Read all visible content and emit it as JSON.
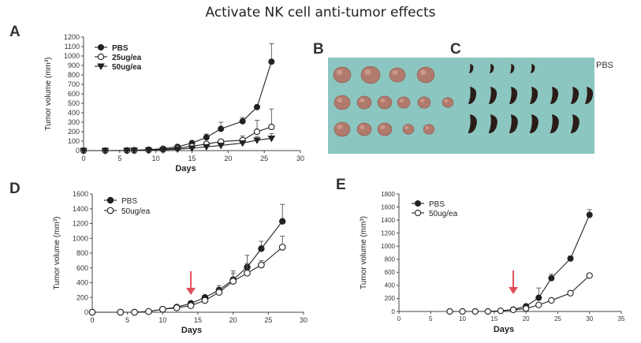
{
  "title": "Activate NK cell anti-tumor effects",
  "panels": {
    "a": {
      "letter": "A"
    },
    "b": {
      "letter": "B"
    },
    "c": {
      "letter": "C",
      "label": "PBS"
    },
    "d": {
      "letter": "D"
    },
    "e": {
      "letter": "E"
    }
  },
  "colors": {
    "axis": "#444444",
    "series_fill": "#222222",
    "arrow": "#e0505a",
    "photo_bg": "#8cc6c0",
    "tumor": "#b07a6c",
    "spleen": "#2a1c18"
  },
  "chart_data": [
    {
      "id": "a",
      "type": "line",
      "xlabel": "Days",
      "ylabel": "Tumor volume (mm³)",
      "xlim": [
        0,
        30
      ],
      "ylim": [
        0,
        1200
      ],
      "xticks": [
        0,
        5,
        10,
        15,
        20,
        25,
        30
      ],
      "yticks": [
        0,
        100,
        200,
        300,
        400,
        500,
        600,
        700,
        800,
        900,
        1000,
        1100,
        1200
      ],
      "legend_position": "top-left",
      "series": [
        {
          "name": "PBS",
          "marker": "circle-filled",
          "x": [
            0,
            3,
            6,
            7,
            9,
            11,
            13,
            15,
            17,
            19,
            22,
            24,
            26
          ],
          "y": [
            0,
            0,
            2,
            5,
            10,
            20,
            40,
            80,
            140,
            230,
            310,
            460,
            940
          ],
          "err": [
            0,
            0,
            0,
            0,
            3,
            6,
            10,
            20,
            35,
            70,
            40,
            0,
            190
          ]
        },
        {
          "name": "25ug/ea",
          "marker": "circle-open",
          "x": [
            0,
            3,
            6,
            7,
            9,
            11,
            13,
            15,
            17,
            19,
            22,
            24,
            26
          ],
          "y": [
            0,
            0,
            1,
            2,
            6,
            12,
            25,
            45,
            70,
            95,
            110,
            200,
            250
          ],
          "err": [
            0,
            0,
            0,
            0,
            0,
            3,
            6,
            10,
            15,
            20,
            45,
            120,
            190
          ]
        },
        {
          "name": "50ug/ea",
          "marker": "triangle-down-filled",
          "x": [
            0,
            3,
            6,
            7,
            9,
            11,
            13,
            15,
            17,
            19,
            22,
            24,
            26
          ],
          "y": [
            0,
            0,
            1,
            2,
            4,
            8,
            15,
            25,
            40,
            55,
            80,
            110,
            130
          ],
          "err": [
            0,
            0,
            0,
            0,
            0,
            0,
            4,
            8,
            10,
            15,
            20,
            40,
            50
          ]
        }
      ]
    },
    {
      "id": "d",
      "type": "line",
      "xlabel": "Days",
      "ylabel": "Tumor volume (mm³)",
      "xlim": [
        0,
        30
      ],
      "ylim": [
        0,
        1600
      ],
      "xticks": [
        0,
        5,
        10,
        15,
        20,
        25,
        30
      ],
      "yticks": [
        0,
        200,
        400,
        600,
        800,
        1000,
        1200,
        1400,
        1600
      ],
      "legend_position": "top-left",
      "arrow_at_x": 14,
      "series": [
        {
          "name": "PBS",
          "marker": "circle-filled",
          "x": [
            0,
            4,
            6,
            8,
            10,
            12,
            14,
            16,
            18,
            20,
            22,
            24,
            27
          ],
          "y": [
            0,
            0,
            0,
            10,
            40,
            70,
            120,
            200,
            300,
            440,
            610,
            860,
            1230
          ],
          "err": [
            0,
            0,
            0,
            0,
            0,
            10,
            20,
            30,
            60,
            120,
            160,
            100,
            230
          ]
        },
        {
          "name": "50ug/ea",
          "marker": "circle-open",
          "x": [
            0,
            4,
            6,
            8,
            10,
            12,
            14,
            16,
            18,
            20,
            22,
            24,
            27
          ],
          "y": [
            0,
            0,
            0,
            10,
            40,
            60,
            90,
            160,
            270,
            420,
            530,
            640,
            880
          ],
          "err": [
            0,
            0,
            0,
            0,
            0,
            0,
            15,
            25,
            45,
            110,
            130,
            60,
            150
          ]
        }
      ]
    },
    {
      "id": "e",
      "type": "line",
      "xlabel": "Days",
      "ylabel": "Tumor volume (mm³)",
      "xlim": [
        0,
        35
      ],
      "ylim": [
        0,
        1800
      ],
      "xticks": [
        0,
        5,
        10,
        15,
        20,
        25,
        30,
        35
      ],
      "yticks": [
        0,
        200,
        400,
        600,
        800,
        1000,
        1200,
        1400,
        1600,
        1800
      ],
      "legend_position": "top-left",
      "arrow_at_x": 18,
      "series": [
        {
          "name": "PBS",
          "marker": "circle-filled",
          "x": [
            8,
            10,
            12,
            14,
            16,
            18,
            20,
            22,
            24,
            27,
            30
          ],
          "y": [
            0,
            0,
            0,
            0,
            10,
            30,
            80,
            210,
            510,
            810,
            1480
          ],
          "err": [
            0,
            0,
            0,
            0,
            0,
            10,
            20,
            150,
            60,
            40,
            80
          ]
        },
        {
          "name": "50ug/ea",
          "marker": "circle-open",
          "x": [
            8,
            10,
            12,
            14,
            16,
            18,
            20,
            22,
            24,
            27,
            30
          ],
          "y": [
            0,
            0,
            0,
            0,
            10,
            25,
            45,
            100,
            170,
            280,
            550
          ],
          "err": [
            0,
            0,
            0,
            0,
            0,
            0,
            10,
            20,
            20,
            15,
            20
          ]
        }
      ]
    }
  ]
}
